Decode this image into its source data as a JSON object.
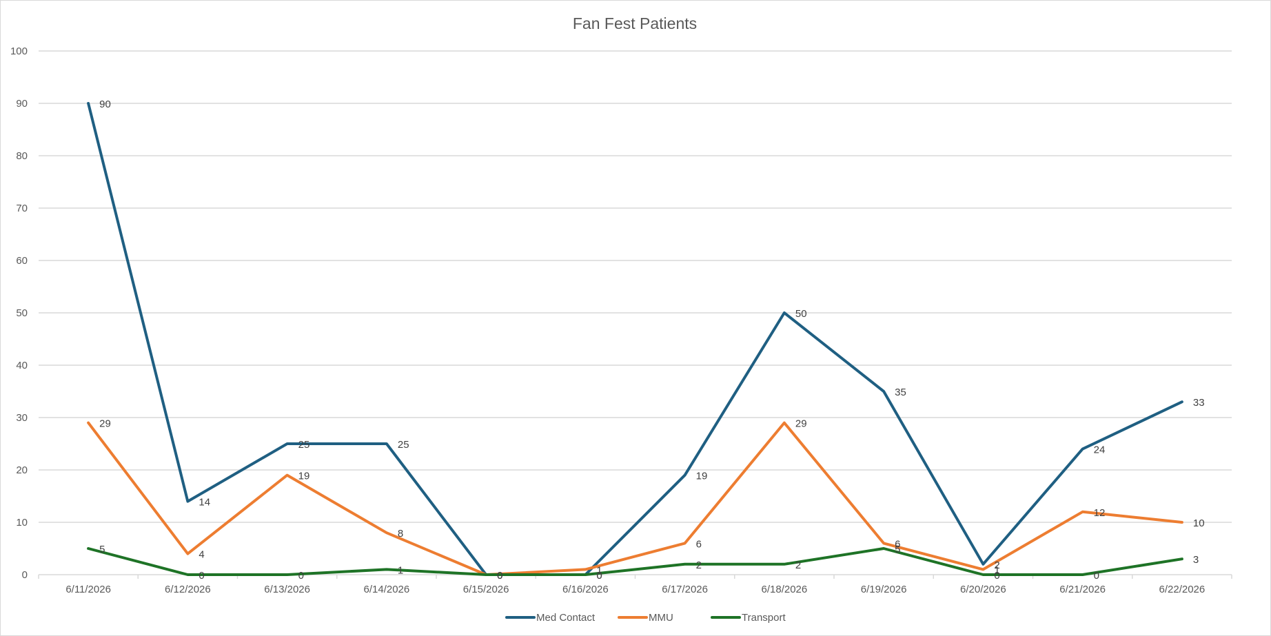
{
  "chart_data": {
    "type": "line",
    "title": "Fan Fest Patients",
    "xlabel": "",
    "ylabel": "",
    "categories": [
      "6/11/2026",
      "6/12/2026",
      "6/13/2026",
      "6/14/2026",
      "6/15/2026",
      "6/16/2026",
      "6/17/2026",
      "6/18/2026",
      "6/19/2026",
      "6/20/2026",
      "6/21/2026",
      "6/22/2026"
    ],
    "ylim": [
      0,
      100
    ],
    "yticks": [
      0,
      10,
      20,
      30,
      40,
      50,
      60,
      70,
      80,
      90,
      100
    ],
    "grid": true,
    "legend_position": "bottom",
    "data_labels": true,
    "series": [
      {
        "name": "Med Contact",
        "color": "#1f5f82",
        "values": [
          90,
          14,
          25,
          25,
          0,
          0,
          19,
          50,
          35,
          2,
          24,
          33
        ]
      },
      {
        "name": "MMU",
        "color": "#ed7d31",
        "values": [
          29,
          4,
          19,
          8,
          0,
          1,
          6,
          29,
          6,
          1,
          12,
          10
        ]
      },
      {
        "name": "Transport",
        "color": "#1e7326",
        "values": [
          5,
          0,
          0,
          1,
          0,
          0,
          2,
          2,
          5,
          0,
          0,
          3
        ]
      }
    ]
  }
}
